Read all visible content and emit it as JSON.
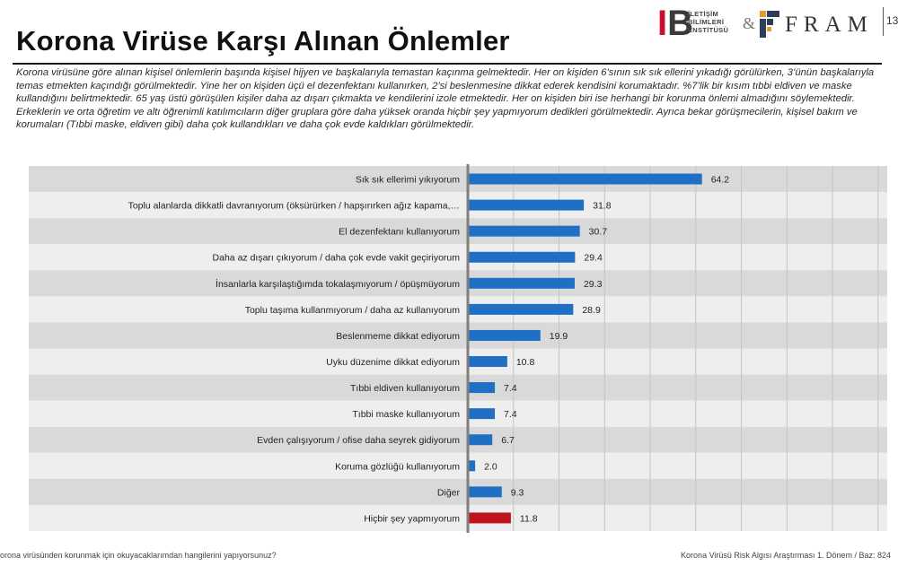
{
  "header": {
    "title": "Korona Virüse Karşı Alınan Önlemler",
    "page_number": "13",
    "logo_ibe_lines": [
      "İLETİŞİM",
      "BİLİMLERİ",
      "ENSTİTÜSÜ"
    ],
    "logo_ampersand": "&",
    "logo_fram": "FRAM"
  },
  "description": "Korona virüsüne göre alınan kişisel önlemlerin başında kişisel hijyen ve başkalarıyla temastan kaçınma gelmektedir. Her on kişiden 6’sının sık sık ellerini yıkadığı görülürken, 3’ünün başkalarıyla temas etmekten kaçındığı görülmektedir. Yine her on kişiden üçü el dezenfektanı kullanırken, 2’si beslenmesine dikkat ederek kendisini korumaktadır. %7’lik bir kısım tıbbi eldiven ve maske kullandığını belirtmektedir. 65 yaş üstü görüşülen kişiler daha az dışarı çıkmakta ve kendilerini izole etmektedir. Her on kişiden biri ise herhangi bir korunma önlemi almadığını söylemektedir. Erkeklerin ve orta öğretim ve altı öğrenimli katılımcıların diğer gruplara göre daha yüksek oranda hiçbir şey yapmıyorum dedikleri görülmektedir. Ayrıca bekar görüşmecilerin, kişisel bakım ve korumaları (Tıbbi maske, eldiven gibi) daha çok kullandıkları ve daha çok evde kaldıkları görülmektedir.",
  "chart_data": {
    "type": "bar",
    "orientation": "horizontal",
    "categories": [
      "Sık sık ellerimi yıkıyorum",
      "Toplu alanlarda dikkatli davranıyorum (öksürürken / hapşırırken ağız kapama,…",
      "El dezenfektanı kullanıyorum",
      "Daha az dışarı çıkıyorum / daha çok evde vakit geçiriyorum",
      "İnsanlarla karşılaştığımda tokalaşmıyorum / öpüşmüyorum",
      "Toplu taşıma kullanmıyorum / daha az kullanıyorum",
      "Beslenmeme dikkat ediyorum",
      "Uyku düzenime dikkat ediyorum",
      "Tıbbi eldiven kullanıyorum",
      "Tıbbi maske kullanıyorum",
      "Evden çalışıyorum / ofise daha seyrek gidiyorum",
      "Koruma gözlüğü kullanıyorum",
      "Diğer",
      "Hiçbir şey yapmıyorum"
    ],
    "values": [
      64.2,
      31.8,
      30.7,
      29.4,
      29.3,
      28.9,
      19.9,
      10.8,
      7.4,
      7.4,
      6.7,
      2.0,
      9.3,
      11.8
    ],
    "value_labels": [
      "64.2",
      "31.8",
      "30.7",
      "29.4",
      "29.3",
      "28.9",
      "19.9",
      "10.8",
      "7.4",
      "7.4",
      "6.7",
      "2.0",
      "9.3",
      "11.8"
    ],
    "colors": [
      "#1f6fc5",
      "#1f6fc5",
      "#1f6fc5",
      "#1f6fc5",
      "#1f6fc5",
      "#1f6fc5",
      "#1f6fc5",
      "#1f6fc5",
      "#1f6fc5",
      "#1f6fc5",
      "#1f6fc5",
      "#1f6fc5",
      "#1f6fc5",
      "#c0141c"
    ],
    "xlim": [
      0,
      115
    ],
    "gridline_step": 12.5,
    "grid": true,
    "legend": "none",
    "row_band_colors": [
      "#d9d9d9",
      "#eeeeee"
    ],
    "axis_color": "#7f7f7f"
  },
  "footer": {
    "question": "orona virüsünden korunmak için okuyacaklarımdan hangilerini yapıyorsunuz?",
    "source": "Korona Virüsü Risk Algısı Araştırması 1. Dönem / Baz: 824"
  }
}
